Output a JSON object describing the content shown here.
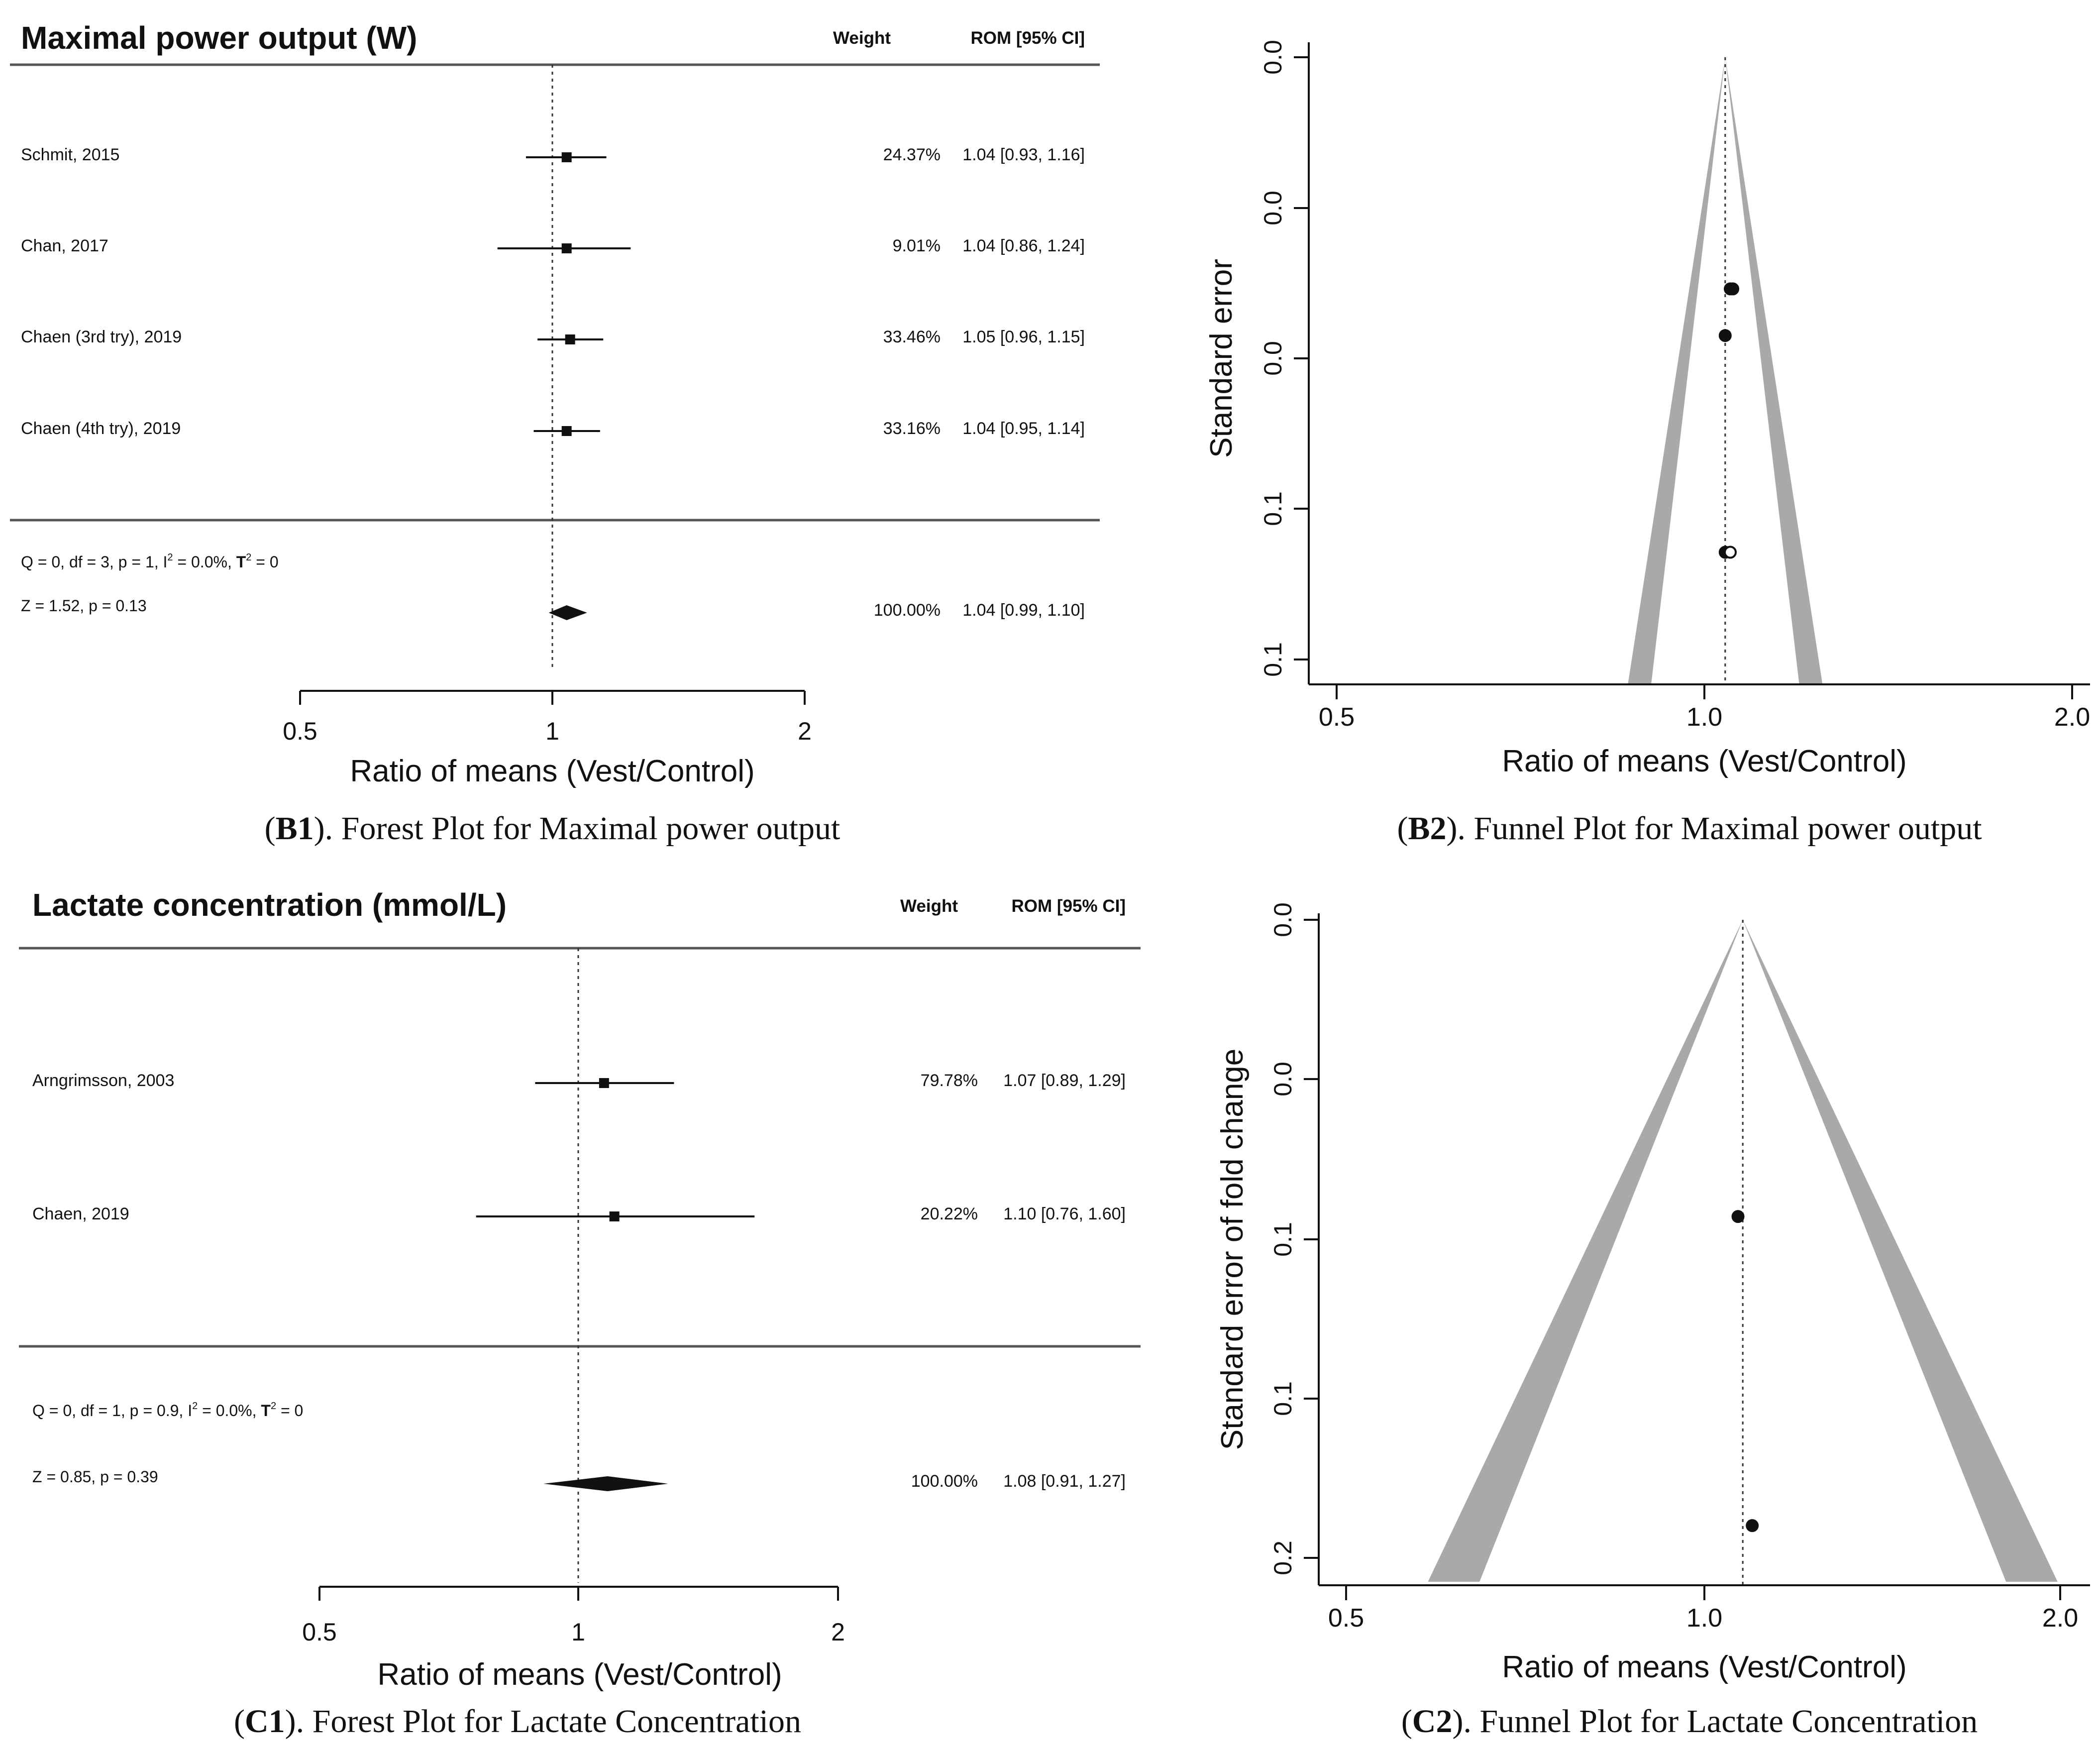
{
  "figure_b1": {
    "caption_label": "B1",
    "caption_text": "). Forest Plot for Maximal power output"
  },
  "figure_b2": {
    "caption_label": "B2",
    "caption_text": "). Funnel Plot for Maximal power output"
  },
  "figure_c1": {
    "caption_label": "C1",
    "caption_text": "). Forest Plot for Lactate Concentration"
  },
  "figure_c2": {
    "caption_label": "C2",
    "caption_text": "). Funnel Plot for Lactate Concentration"
  },
  "colors": {
    "ink": "#111111",
    "funnel_band": "#a9a9a9",
    "rule": "#555555"
  },
  "chart_data": [
    {
      "id": "b1",
      "type": "forest",
      "title": "Maximal power output (W)",
      "weight_header": "Weight",
      "ci_header": "ROM [95% CI]",
      "xlabel": "Ratio of means (Vest/Control)",
      "x_scale": "log",
      "xlim": [
        0.5,
        2
      ],
      "ticks": [
        {
          "v": 0.5,
          "label": "0.5"
        },
        {
          "v": 1,
          "label": "1"
        },
        {
          "v": 2,
          "label": "2"
        }
      ],
      "reference_line": 1,
      "studies": [
        {
          "label": "Schmit, 2015",
          "est": 1.04,
          "lo": 0.93,
          "hi": 1.16,
          "weight": "24.37%",
          "ci_text": "1.04 [0.93, 1.16]"
        },
        {
          "label": "Chan, 2017",
          "est": 1.04,
          "lo": 0.86,
          "hi": 1.24,
          "weight": "9.01%",
          "ci_text": "1.04 [0.86, 1.24]"
        },
        {
          "label": "Chaen (3rd try), 2019",
          "est": 1.05,
          "lo": 0.96,
          "hi": 1.15,
          "weight": "33.46%",
          "ci_text": "1.05 [0.96, 1.15]"
        },
        {
          "label": "Chaen (4th try), 2019",
          "est": 1.04,
          "lo": 0.95,
          "hi": 1.14,
          "weight": "33.16%",
          "ci_text": "1.04 [0.95, 1.14]"
        }
      ],
      "heterogeneity": {
        "pre": "Q = 0, df = 3, p =   1, I",
        "sup1": "2",
        "mid": " = 0.0%, ",
        "tau": "T",
        "sup2": "2",
        "post": " =   0"
      },
      "overall": {
        "z_text": "Z = 1.52, p = 0.13",
        "est": 1.04,
        "lo": 0.99,
        "hi": 1.1,
        "weight": "100.00%",
        "ci_text": "1.04 [0.99, 1.10]"
      }
    },
    {
      "id": "b2",
      "type": "funnel",
      "xlabel": "Ratio of means (Vest/Control)",
      "ylabel": "Standard error",
      "x_scale": "log",
      "xlim": [
        0.5,
        2.0
      ],
      "x_ticks": [
        {
          "v": 0.5,
          "label": "0.5"
        },
        {
          "v": 1.0,
          "label": "1.0"
        },
        {
          "v": 2.0,
          "label": "2.0"
        }
      ],
      "y_ticks": [
        "0.0",
        "0.0",
        "0.0",
        "0.1",
        "0.1"
      ],
      "center": 1.04,
      "points": [
        {
          "x": 1.05,
          "se": 0.0263,
          "filled": true
        },
        {
          "x": 1.055,
          "se": 0.0263,
          "filled": true
        },
        {
          "x": 1.04,
          "se": 0.0316,
          "filled": true
        },
        {
          "x": 1.04,
          "se": 0.0562,
          "filled": true
        },
        {
          "x": 1.05,
          "se": 0.0562,
          "filled": false
        }
      ]
    },
    {
      "id": "c1",
      "type": "forest",
      "title": "Lactate concentration (mmol/L)",
      "weight_header": "Weight",
      "ci_header": "ROM [95% CI]",
      "xlabel": "Ratio of means (Vest/Control)",
      "x_scale": "log",
      "xlim": [
        0.5,
        2
      ],
      "ticks": [
        {
          "v": 0.5,
          "label": "0.5"
        },
        {
          "v": 1,
          "label": "1"
        },
        {
          "v": 2,
          "label": "2"
        }
      ],
      "reference_line": 1,
      "studies": [
        {
          "label": "Arngrimsson, 2003",
          "est": 1.07,
          "lo": 0.89,
          "hi": 1.29,
          "weight": "79.78%",
          "ci_text": "1.07 [0.89, 1.29]"
        },
        {
          "label": "Chaen, 2019",
          "est": 1.1,
          "lo": 0.76,
          "hi": 1.6,
          "weight": "20.22%",
          "ci_text": "1.10 [0.76, 1.60]"
        }
      ],
      "heterogeneity": {
        "pre": "Q = 0, df = 1, p = 0.9, I",
        "sup1": "2",
        "mid": " = 0.0%, ",
        "tau": "T",
        "sup2": "2",
        "post": " =   0"
      },
      "overall": {
        "z_text": "Z = 0.85, p = 0.39",
        "est": 1.08,
        "lo": 0.91,
        "hi": 1.27,
        "weight": "100.00%",
        "ci_text": "1.08 [0.91, 1.27]"
      }
    },
    {
      "id": "c2",
      "type": "funnel",
      "xlabel": "Ratio of means (Vest/Control)",
      "ylabel": "Standard error of fold change",
      "x_scale": "log",
      "xlim": [
        0.5,
        2.0
      ],
      "x_ticks": [
        {
          "v": 0.5,
          "label": "0.5"
        },
        {
          "v": 1.0,
          "label": "1.0"
        },
        {
          "v": 2.0,
          "label": "2.0"
        }
      ],
      "y_ticks": [
        "0.0",
        "0.0",
        "0.1",
        "0.1",
        "0.2"
      ],
      "center": 1.08,
      "points": [
        {
          "x": 1.07,
          "se": 0.0935,
          "filled": true
        },
        {
          "x": 1.1,
          "se": 0.1909,
          "filled": true
        }
      ]
    }
  ]
}
